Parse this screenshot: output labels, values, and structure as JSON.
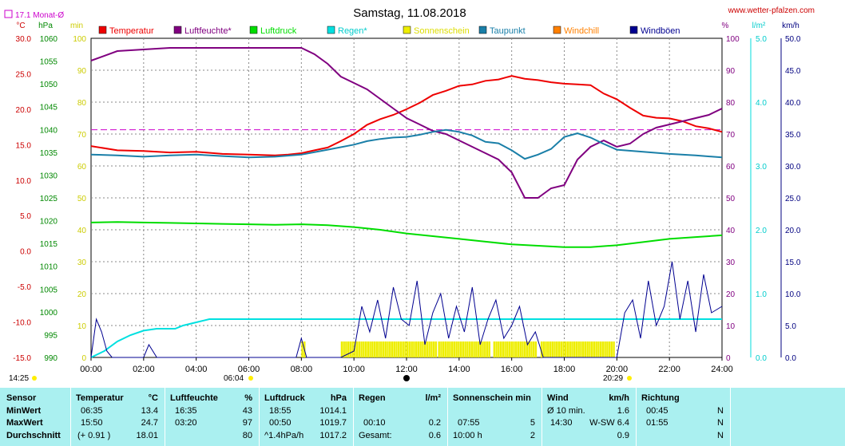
{
  "header": {
    "title": "Samstag, 11.08.2018",
    "website": "www.wetter-pfalzen.com",
    "monthly_avg_label": "17.1 Monat-Ø"
  },
  "legend": [
    {
      "label": "Temperatur",
      "color": "#ee0000"
    },
    {
      "label": "Luftfeuchte*",
      "color": "#800080"
    },
    {
      "label": "Luftdruck",
      "color": "#00dd00"
    },
    {
      "label": "Regen*",
      "color": "#00e0e0"
    },
    {
      "label": "Sonnenschein",
      "color": "#eeee00"
    },
    {
      "label": "Taupunkt",
      "color": "#1a7fa8"
    },
    {
      "label": "Windchill",
      "color": "#ff8000"
    },
    {
      "label": "Windböen",
      "color": "#000090"
    }
  ],
  "axes": {
    "temp": {
      "unit": "°C",
      "color": "#cc0000",
      "ticks": [
        "30.0",
        "25.0",
        "20.0",
        "15.0",
        "10.0",
        "5.0",
        "0.0",
        "-5.0",
        "-10.0",
        "-15.0"
      ]
    },
    "pressure": {
      "unit": "hPa",
      "color": "#008800",
      "ticks": [
        "1060",
        "1055",
        "1050",
        "1045",
        "1040",
        "1035",
        "1030",
        "1025",
        "1020",
        "1015",
        "1010",
        "1005",
        "1000",
        "995",
        "990"
      ]
    },
    "sun": {
      "unit": "min",
      "color": "#cccc00",
      "ticks": [
        "100",
        "90",
        "80",
        "70",
        "60",
        "50",
        "40",
        "30",
        "20",
        "10",
        "0"
      ]
    },
    "humidity": {
      "unit": "%",
      "color": "#800080",
      "ticks": [
        "100",
        "90",
        "80",
        "70",
        "60",
        "50",
        "40",
        "30",
        "20",
        "10",
        "0"
      ]
    },
    "rain": {
      "unit": "l/m²",
      "color": "#00cccc",
      "ticks": [
        "5.0",
        "4.0",
        "3.0",
        "2.0",
        "1.0",
        "0.0"
      ]
    },
    "wind": {
      "unit": "km/h",
      "color": "#000080",
      "ticks": [
        "50.0",
        "45.0",
        "40.0",
        "35.0",
        "30.0",
        "25.0",
        "20.0",
        "15.0",
        "10.0",
        "5.0",
        "0.0"
      ]
    },
    "time": {
      "ticks": [
        "00:00",
        "02:00",
        "04:00",
        "06:00",
        "08:00",
        "10:00",
        "12:00",
        "14:00",
        "16:00",
        "18:00",
        "20:00",
        "22:00",
        "24:00"
      ]
    }
  },
  "sun_events": {
    "first": "14:25",
    "sunrise": "06:04",
    "sunset": "20:29"
  },
  "chart_data": {
    "type": "line",
    "title": "Samstag, 11.08.2018",
    "x_unit": "hours",
    "x_range": [
      0,
      24
    ],
    "monthly_avg_temp": 17.1,
    "series": [
      {
        "name": "Temperatur",
        "unit": "°C",
        "x": [
          0,
          1,
          2,
          3,
          4,
          5,
          6,
          7,
          7.5,
          8,
          8.5,
          9,
          9.5,
          10,
          10.5,
          11,
          11.5,
          12,
          12.5,
          13,
          13.5,
          14,
          14.5,
          15,
          15.5,
          16,
          16.5,
          17,
          17.5,
          18,
          18.5,
          19,
          19.5,
          20,
          20.5,
          21,
          21.5,
          22,
          22.5,
          23,
          23.5,
          24
        ],
        "y": [
          14.8,
          14.2,
          14.1,
          13.9,
          14.0,
          13.7,
          13.6,
          13.5,
          13.6,
          13.8,
          14.2,
          14.6,
          15.5,
          16.5,
          17.8,
          18.6,
          19.2,
          20.0,
          20.9,
          22.0,
          22.6,
          23.3,
          23.5,
          24.0,
          24.2,
          24.7,
          24.3,
          24.1,
          23.8,
          23.6,
          23.5,
          23.4,
          22.2,
          21.4,
          20.2,
          19.1,
          18.8,
          18.7,
          18.3,
          17.6,
          17.3,
          16.8
        ]
      },
      {
        "name": "Luftfeuchte*",
        "unit": "%",
        "x": [
          0,
          1,
          2,
          3,
          4,
          5,
          6,
          7,
          8,
          8.5,
          9,
          9.5,
          10,
          10.5,
          11,
          11.5,
          12,
          12.5,
          13,
          13.5,
          14,
          14.5,
          15,
          15.5,
          16,
          16.5,
          17,
          17.5,
          18,
          18.5,
          19,
          19.5,
          20,
          20.5,
          21,
          21.5,
          22,
          22.5,
          23,
          23.5,
          24
        ],
        "y": [
          93,
          96,
          96.5,
          97,
          97,
          97,
          97,
          97,
          97,
          95,
          92,
          88,
          86,
          84,
          81,
          78,
          75,
          73,
          71,
          70,
          68,
          66,
          64,
          62,
          58,
          50,
          50,
          53,
          54,
          62,
          66,
          68,
          66,
          67,
          70,
          72,
          73,
          74,
          75,
          76,
          78
        ]
      },
      {
        "name": "Luftdruck",
        "unit": "hPa",
        "x": [
          0,
          1,
          2,
          3,
          4,
          5,
          6,
          7,
          8,
          9,
          10,
          11,
          12,
          13,
          14,
          15,
          16,
          17,
          18,
          19,
          20,
          21,
          22,
          23,
          24
        ],
        "y": [
          1019.6,
          1019.7,
          1019.6,
          1019.5,
          1019.4,
          1019.3,
          1019.2,
          1019.1,
          1019.2,
          1019.0,
          1018.6,
          1018.0,
          1017.2,
          1016.6,
          1016.0,
          1015.4,
          1014.8,
          1014.5,
          1014.2,
          1014.2,
          1014.6,
          1015.3,
          1016.0,
          1016.4,
          1016.8
        ]
      },
      {
        "name": "Regen*",
        "unit": "l/m²",
        "x": [
          0,
          0.5,
          1,
          1.5,
          2,
          2.5,
          3,
          3.2,
          3.5,
          4,
          4.5,
          5,
          6,
          8,
          12,
          16,
          20,
          24
        ],
        "y": [
          0,
          0.1,
          0.25,
          0.35,
          0.42,
          0.45,
          0.45,
          0.45,
          0.5,
          0.55,
          0.6,
          0.6,
          0.6,
          0.6,
          0.6,
          0.6,
          0.6,
          0.6
        ]
      },
      {
        "name": "Taupunkt",
        "unit": "°C",
        "x": [
          0,
          1,
          2,
          3,
          4,
          5,
          6,
          7,
          8,
          9,
          10,
          10.5,
          11,
          11.5,
          12,
          12.5,
          13,
          13.5,
          14,
          14.5,
          15,
          15.5,
          16,
          16.5,
          17,
          17.5,
          18,
          18.5,
          19,
          19.5,
          20,
          21,
          22,
          23,
          24
        ],
        "y": [
          13.6,
          13.5,
          13.3,
          13.5,
          13.6,
          13.4,
          13.2,
          13.3,
          13.6,
          14.3,
          15.0,
          15.5,
          15.8,
          16.0,
          16.1,
          16.4,
          16.8,
          17.1,
          16.8,
          16.3,
          15.4,
          15.2,
          14.2,
          13.0,
          13.6,
          14.4,
          16.1,
          16.6,
          16.0,
          15.1,
          14.3,
          14.0,
          13.7,
          13.5,
          13.2
        ]
      },
      {
        "name": "Windböen",
        "unit": "km/h",
        "x": [
          0,
          0.2,
          0.4,
          0.6,
          0.8,
          1.0,
          1.2,
          1.5,
          2.0,
          2.2,
          2.5,
          3,
          4,
          5,
          6,
          7,
          7.8,
          8,
          8.2,
          8.5,
          9,
          9.5,
          10,
          10.3,
          10.6,
          10.9,
          11.2,
          11.5,
          11.8,
          12.1,
          12.4,
          12.7,
          13,
          13.3,
          13.6,
          13.9,
          14.2,
          14.5,
          14.8,
          15.1,
          15.4,
          15.7,
          16,
          16.3,
          16.6,
          16.9,
          17.2,
          17.5,
          18,
          18.5,
          19,
          19.5,
          20,
          20.3,
          20.6,
          20.9,
          21.2,
          21.5,
          21.8,
          22.1,
          22.4,
          22.7,
          23,
          23.3,
          23.6,
          24
        ],
        "y": [
          0,
          6,
          4,
          1,
          0,
          0,
          0,
          0,
          0,
          2,
          0,
          0,
          0,
          0,
          0,
          0,
          0,
          3,
          0,
          0,
          0,
          0,
          1,
          8,
          4,
          9,
          3,
          11,
          6,
          5,
          12,
          2,
          7,
          10,
          3,
          8,
          4,
          11,
          2,
          6,
          9,
          3,
          5,
          8,
          2,
          4,
          0,
          0,
          0,
          0,
          0,
          0,
          0,
          7,
          9,
          3,
          12,
          5,
          8,
          15,
          6,
          12,
          4,
          13,
          7,
          8
        ]
      }
    ],
    "sunshine": {
      "unit": "min",
      "intervals": [
        [
          8.0,
          8.1
        ],
        [
          9.5,
          13.1
        ],
        [
          13.2,
          15.2
        ],
        [
          15.3,
          16.9
        ],
        [
          17.1,
          19.9
        ]
      ]
    }
  },
  "stats": {
    "headers": {
      "sensor": "Sensor",
      "temp": "Temperatur",
      "temp_unit": "°C",
      "hum": "Luftfeuchte",
      "hum_unit": "%",
      "press": "Luftdruck",
      "press_unit": "hPa",
      "rain": "Regen",
      "rain_unit": "l/m²",
      "sun": "Sonnenschein min",
      "wind": "Wind",
      "wind_unit": "km/h",
      "dir": "Richtung"
    },
    "rows": {
      "min": "MinWert",
      "max": "MaxWert",
      "avg": "Durchschnitt"
    },
    "temp": {
      "min_time": "06:35",
      "min_val": "13.4",
      "max_time": "15:50",
      "max_val": "24.7",
      "avg_note": "(+ 0.91 )",
      "avg_val": "18.01"
    },
    "hum": {
      "min_time": "16:35",
      "min_val": "43",
      "max_time": "03:20",
      "max_val": "97",
      "avg_val": "80"
    },
    "press": {
      "min_time": "18:55",
      "min_val": "1014.1",
      "max_time": "00:50",
      "max_val": "1019.7",
      "avg_note": "^1.4hPa/h",
      "avg_val": "1017.2"
    },
    "rain": {
      "max_time": "00:10",
      "max_val": "0.2",
      "avg_label": "Gesamt:",
      "avg_val": "0.6"
    },
    "sun": {
      "max_time": "07:55",
      "max_val": "5",
      "avg_label": "10:00 h",
      "avg_val": "2"
    },
    "wind": {
      "min_label": "Ø 10 min.",
      "min_val": "1.6",
      "max_time": "14:30",
      "max_val": "W-SW 6.4",
      "avg_val": "0.9"
    },
    "dir": {
      "min_time": "00:45",
      "min_val": "N",
      "max_time": "01:55",
      "max_val": "N",
      "avg_val": "N"
    }
  }
}
